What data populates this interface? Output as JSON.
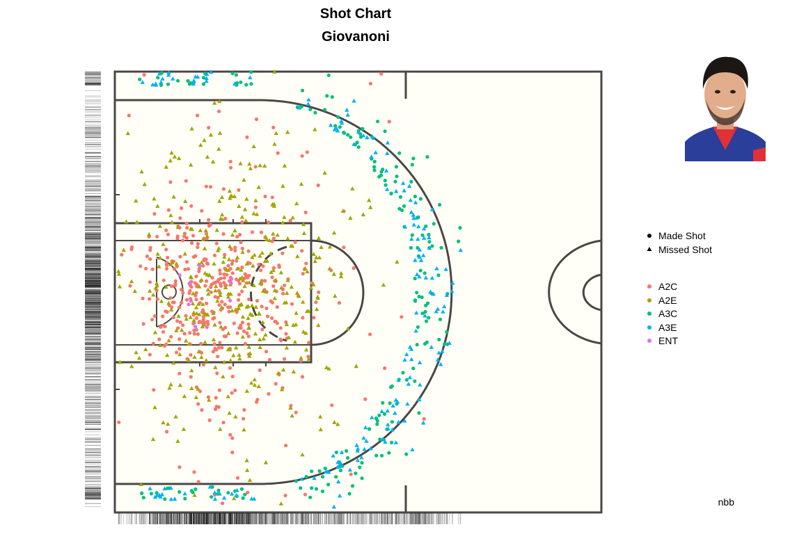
{
  "chart_data": {
    "type": "scatter",
    "title": "Shot Chart",
    "subtitle": "Giovanoni",
    "caption": "nbb",
    "shape_legend": [
      {
        "label": "Made Shot",
        "shape": "circle"
      },
      {
        "label": "Missed Shot",
        "shape": "triangle"
      }
    ],
    "color_legend": [
      {
        "label": "A2C",
        "color": "#F8766D"
      },
      {
        "label": "A2E",
        "color": "#A3A500"
      },
      {
        "label": "A3C",
        "color": "#00BF7D"
      },
      {
        "label": "A3E",
        "color": "#00B0F6"
      },
      {
        "label": "ENT",
        "color": "#E76BF3"
      }
    ],
    "series": [
      {
        "category": "A2C",
        "color": "#F8766D",
        "made_count": 420,
        "missed_count": 0
      },
      {
        "category": "A2E",
        "color": "#A3A500",
        "made_count": 0,
        "missed_count": 360
      },
      {
        "category": "A3C",
        "color": "#00BF7D",
        "made_count": 190,
        "missed_count": 0
      },
      {
        "category": "A3E",
        "color": "#00B0F6",
        "made_count": 0,
        "missed_count": 170
      },
      {
        "category": "ENT",
        "color": "#E76BF3",
        "made_count": 10,
        "missed_count": 0
      }
    ],
    "rug_plots": [
      "bottom",
      "left"
    ],
    "background": "#FFFFF8"
  }
}
